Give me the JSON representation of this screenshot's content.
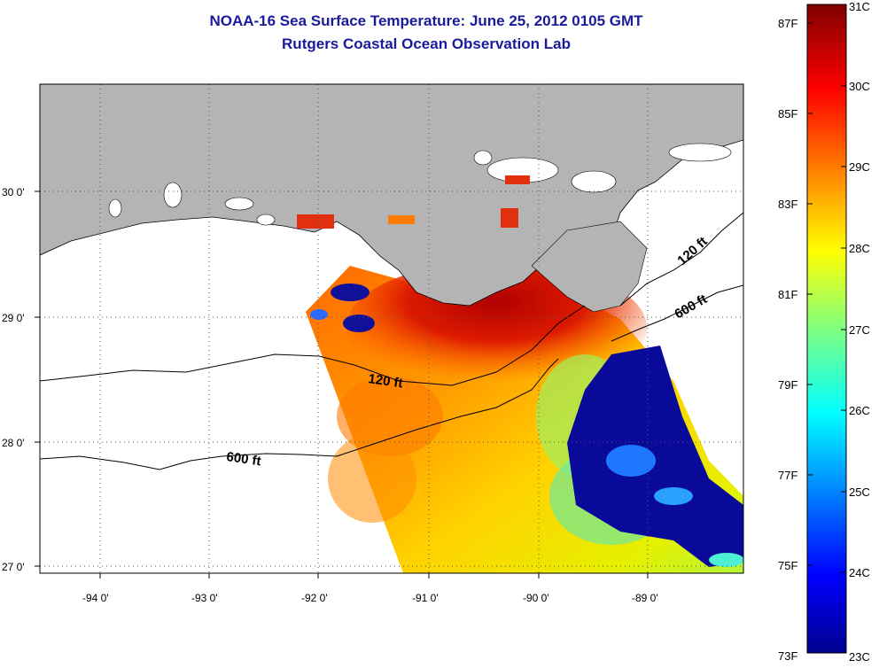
{
  "header": {
    "title": "NOAA-16 Sea Surface Temperature:  June 25, 2012 0105 GMT",
    "subtitle": "Rutgers Coastal Ocean Observation Lab"
  },
  "map": {
    "lat_ticks": [
      "30 0'",
      "29 0'",
      "28 0'",
      "27 0'"
    ],
    "lon_ticks": [
      "-94 0'",
      "-93 0'",
      "-92 0'",
      "-91 0'",
      "-90 0'",
      "-89 0'"
    ],
    "contour_labels": [
      "120 ft",
      "600 ft",
      "120 ft",
      "600 ft"
    ],
    "colors": {
      "land": "#b4b4b4",
      "water_no_data": "#ffffff",
      "title": "#1a1a9c"
    }
  },
  "colorbar": {
    "celsius_labels": [
      "31C",
      "30C",
      "29C",
      "28C",
      "27C",
      "26C",
      "25C",
      "24C",
      "23C"
    ],
    "fahrenheit_labels": [
      "87F",
      "85F",
      "83F",
      "81F",
      "79F",
      "77F",
      "75F",
      "73F"
    ],
    "range_c": [
      23,
      31
    ],
    "colormap": "jet"
  }
}
